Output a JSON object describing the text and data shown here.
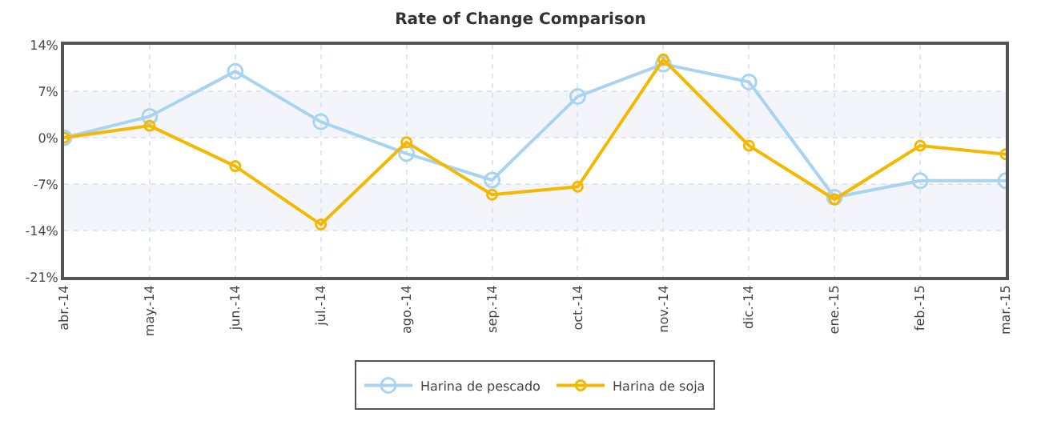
{
  "chart_data": {
    "type": "line",
    "title": "Rate of Change Comparison",
    "categories": [
      "abr.-14",
      "may.-14",
      "jun.-14",
      "jul.-14",
      "ago.-14",
      "sep.-14",
      "oct.-14",
      "nov.-14",
      "dic.-14",
      "ene.-15",
      "feb.-15",
      "mar.-15"
    ],
    "series": [
      {
        "name": "Harina de pescado",
        "color": "#a8d4f2",
        "values": [
          0,
          3.2,
          10.0,
          2.4,
          -2.4,
          -6.4,
          6.2,
          11.1,
          8.4,
          -9.0,
          -6.5,
          -6.5
        ]
      },
      {
        "name": "Harina de soja",
        "color": "#f5b800",
        "values": [
          0,
          1.8,
          -4.3,
          -13.1,
          -0.7,
          -8.6,
          -7.4,
          11.8,
          -1.2,
          -9.3,
          -1.2,
          -2.5
        ]
      }
    ],
    "ylim": [
      -21,
      14
    ],
    "yticks": [
      {
        "value": -21,
        "label": "-21%"
      },
      {
        "value": -14,
        "label": "-14%"
      },
      {
        "value": -7,
        "label": "-7%"
      },
      {
        "value": 0,
        "label": "0%"
      },
      {
        "value": 7,
        "label": "7%"
      },
      {
        "value": 14,
        "label": "14%"
      }
    ],
    "bands": [
      {
        "axis": "y",
        "from": 0,
        "to": 7,
        "color": "#f3f5fb"
      },
      {
        "axis": "y",
        "from": -14,
        "to": -7,
        "color": "#f3f5fb"
      }
    ],
    "grid": true,
    "legend": "bottom",
    "marker": "circle",
    "line_style": "solid"
  }
}
